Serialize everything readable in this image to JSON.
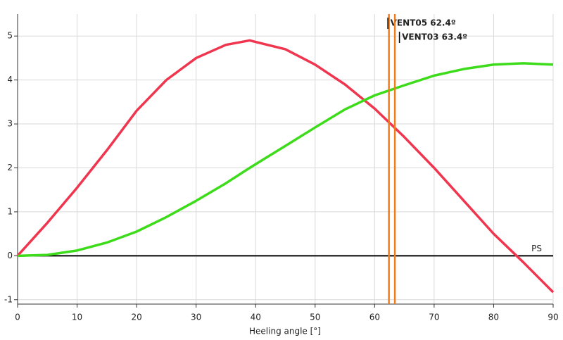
{
  "chart_data": {
    "type": "line",
    "x_label": "Heeling angle [°]",
    "x": [
      0,
      5,
      10,
      15,
      20,
      25,
      30,
      35,
      39,
      45,
      50,
      55,
      60,
      65,
      70,
      75,
      80,
      85,
      90
    ],
    "series": [
      {
        "color": "#f0354f",
        "values": [
          0,
          0.75,
          1.55,
          2.4,
          3.3,
          4.0,
          4.5,
          4.8,
          4.9,
          4.7,
          4.35,
          3.9,
          3.35,
          2.7,
          2.0,
          1.25,
          0.5,
          -0.15,
          -0.83
        ]
      },
      {
        "color": "#3ddc1a",
        "values": [
          0,
          0.02,
          0.12,
          0.3,
          0.55,
          0.88,
          1.25,
          1.65,
          2.0,
          2.5,
          2.92,
          3.33,
          3.65,
          3.88,
          4.1,
          4.25,
          4.35,
          4.38,
          4.35
        ]
      }
    ],
    "vertical_lines": [
      {
        "x": 62.4,
        "label": "VENT05 62.4º",
        "color": "#f07d1a"
      },
      {
        "x": 63.4,
        "label": "VENT03 63.4º",
        "color": "#f07d1a"
      }
    ],
    "reference_line": {
      "y": 0,
      "label": "PS"
    },
    "xlim": [
      0,
      90
    ],
    "xticks": [
      0,
      10,
      20,
      30,
      40,
      50,
      60,
      70,
      80,
      90
    ],
    "ylim": [
      -1.1,
      5.5
    ],
    "yticks": [
      -1,
      0,
      1,
      2,
      3,
      4,
      5
    ],
    "grid": true
  }
}
